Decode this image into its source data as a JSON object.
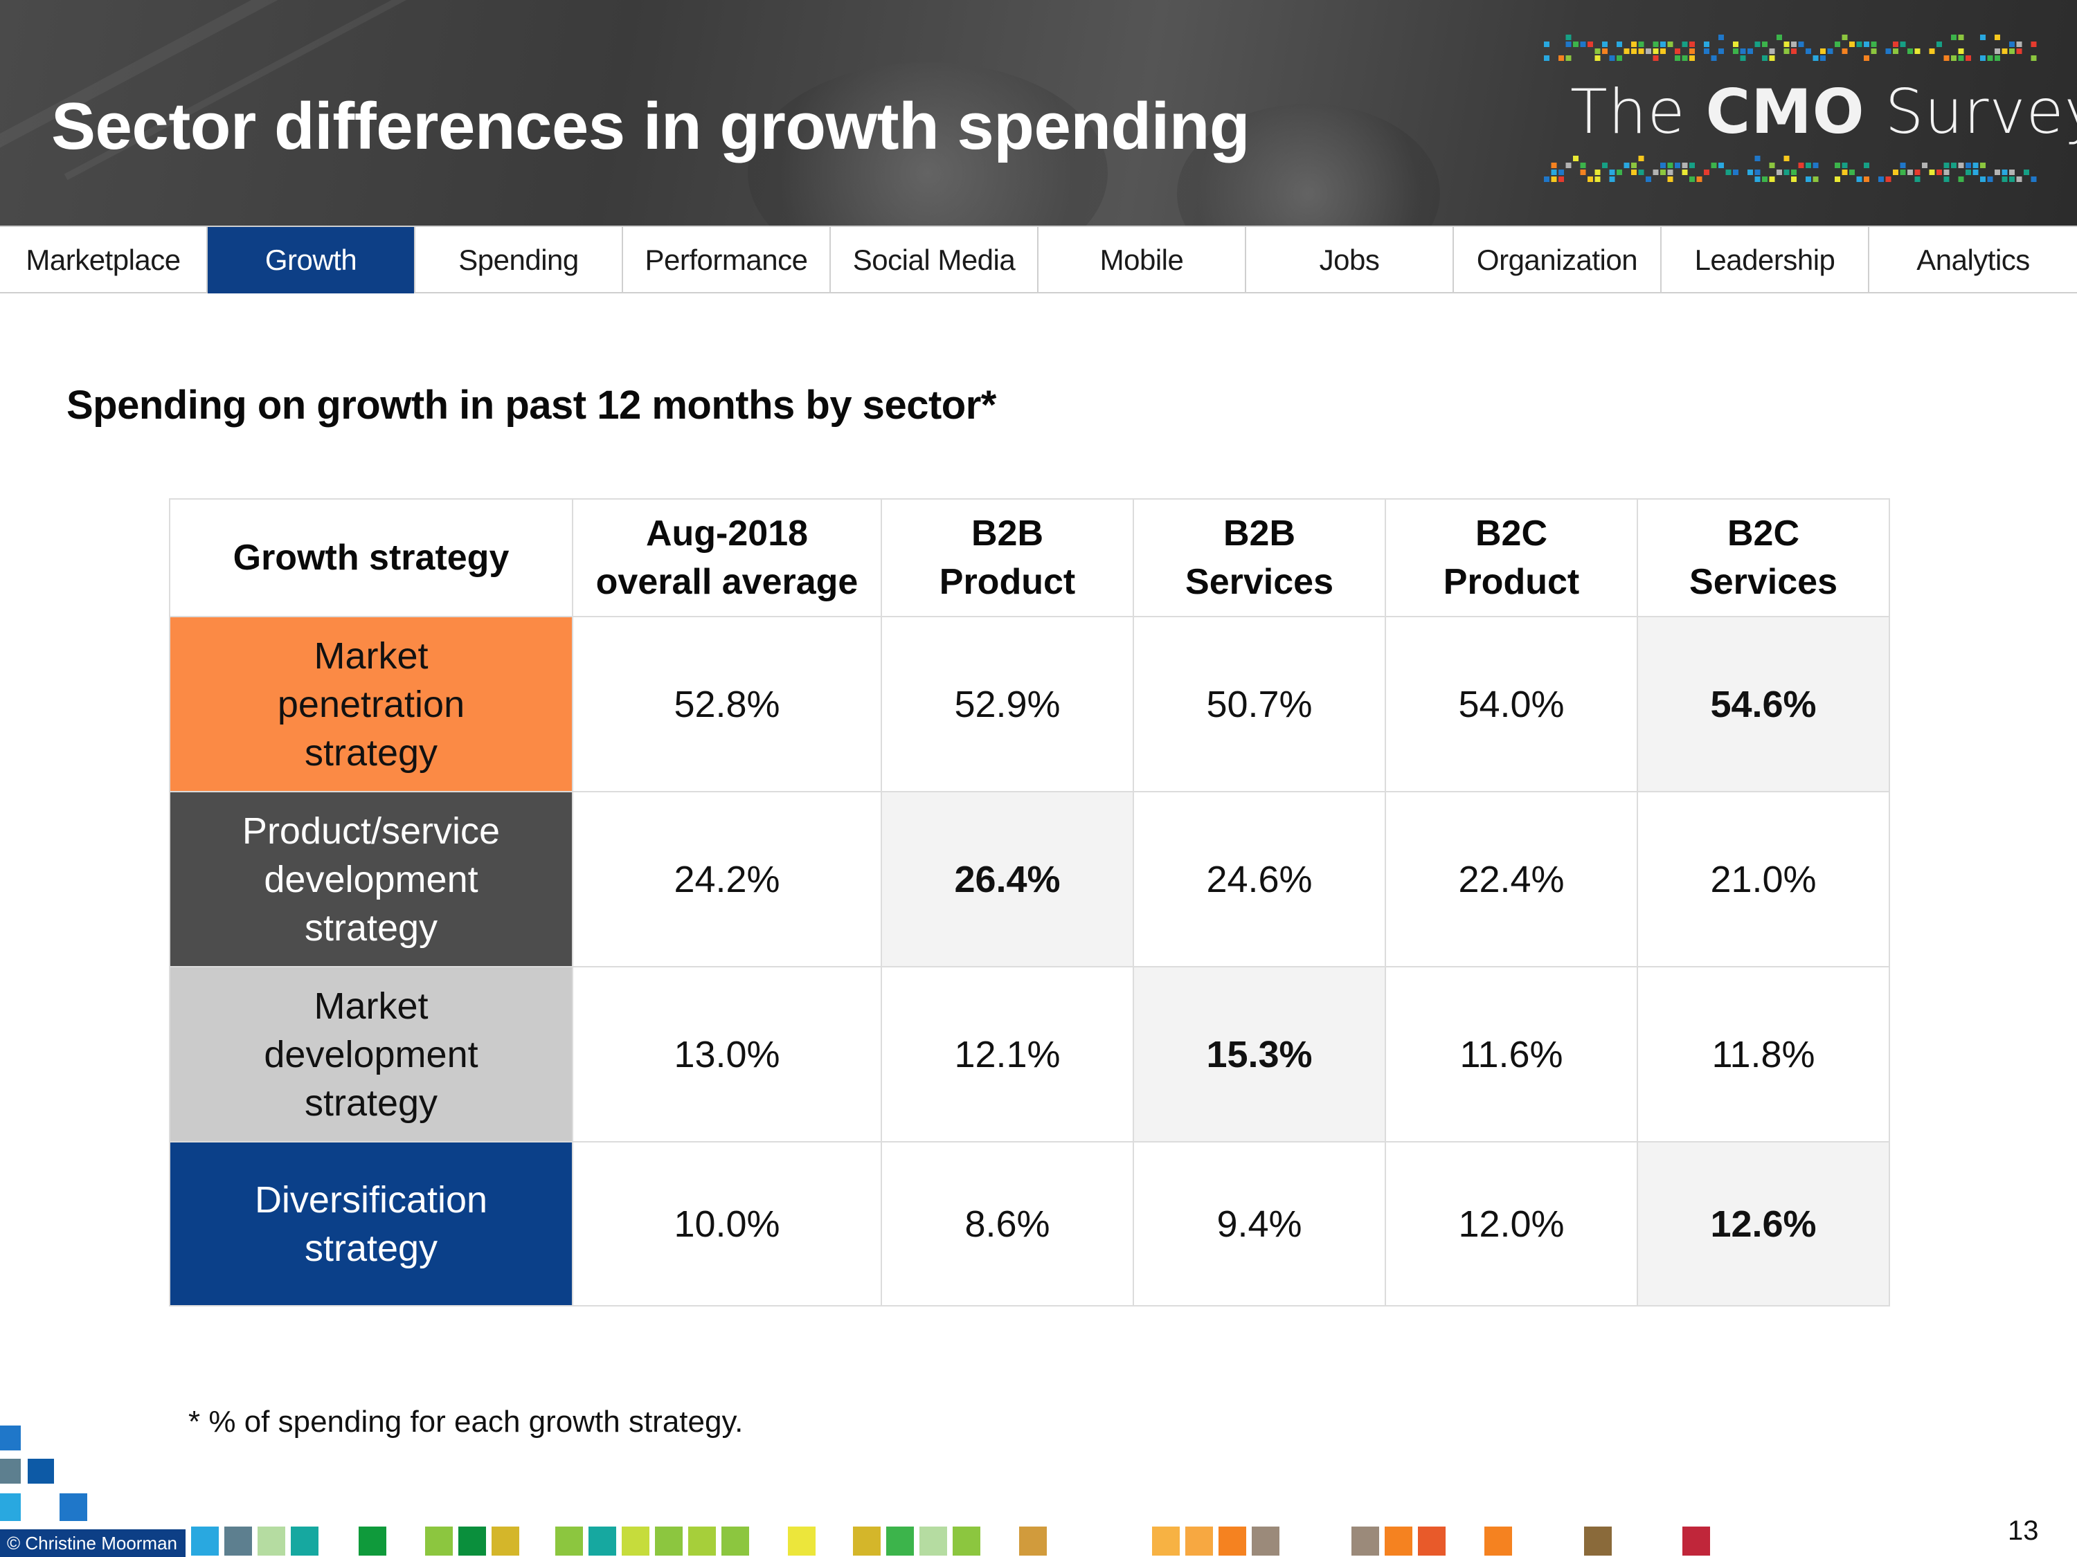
{
  "header": {
    "title": "Sector differences in growth spending",
    "logo": {
      "prefix": "The ",
      "emphasis": "CMO",
      "suffix": " Survey"
    }
  },
  "nav": {
    "tabs": [
      {
        "label": "Marketplace",
        "active": false
      },
      {
        "label": "Growth",
        "active": true
      },
      {
        "label": "Spending",
        "active": false
      },
      {
        "label": "Performance",
        "active": false
      },
      {
        "label": "Social Media",
        "active": false
      },
      {
        "label": "Mobile",
        "active": false
      },
      {
        "label": "Jobs",
        "active": false
      },
      {
        "label": "Organization",
        "active": false
      },
      {
        "label": "Leadership",
        "active": false
      },
      {
        "label": "Analytics",
        "active": false
      }
    ],
    "active_color": "#0d3f86"
  },
  "subtitle": "Spending on growth in past 12 months by sector*",
  "table": {
    "headers": [
      "Growth strategy",
      "Aug-2018 overall average",
      "B2B Product",
      "B2B Services",
      "B2C Product",
      "B2C Services"
    ],
    "header_lines": [
      [
        "Growth strategy"
      ],
      [
        "Aug-2018",
        "overall average"
      ],
      [
        "B2B",
        "Product"
      ],
      [
        "B2B",
        "Services"
      ],
      [
        "B2C",
        "Product"
      ],
      [
        "B2C",
        "Services"
      ]
    ],
    "rows": [
      {
        "label_lines": [
          "Market",
          "penetration",
          "strategy"
        ],
        "color": "#fb8a45",
        "values": [
          "52.8%",
          "52.9%",
          "50.7%",
          "54.0%",
          "54.6%"
        ],
        "highlight_index": 4
      },
      {
        "label_lines": [
          "Product/service",
          "development",
          "strategy"
        ],
        "color": "#4d4d4d",
        "values": [
          "24.2%",
          "26.4%",
          "24.6%",
          "22.4%",
          "21.0%"
        ],
        "highlight_index": 1
      },
      {
        "label_lines": [
          "Market",
          "development",
          "strategy"
        ],
        "color": "#cbcbcb",
        "values": [
          "13.0%",
          "12.1%",
          "15.3%",
          "11.6%",
          "11.8%"
        ],
        "highlight_index": 2
      },
      {
        "label_lines": [
          "Diversification",
          "strategy"
        ],
        "color": "#0b4089",
        "values": [
          "10.0%",
          "8.6%",
          "9.4%",
          "12.0%",
          "12.6%"
        ],
        "highlight_index": 4
      }
    ]
  },
  "footnote": "* % of spending for each growth strategy.",
  "copyright": "© Christine Moorman",
  "page_number": "13"
}
